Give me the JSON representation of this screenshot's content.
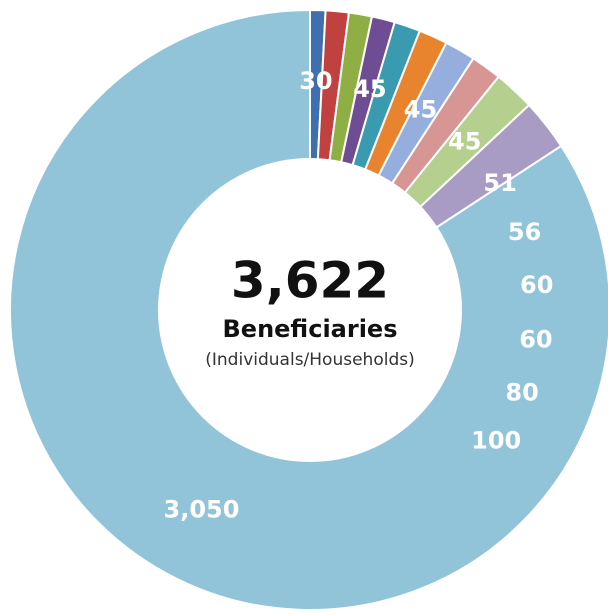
{
  "chart_data": {
    "type": "donut",
    "center_title": "3,622",
    "center_subtitle": "Beneficiaries",
    "center_note": "(Individuals/Households)",
    "values": [
      30,
      45,
      45,
      45,
      51,
      56,
      60,
      60,
      80,
      100,
      3050
    ],
    "value_labels": [
      "30",
      "45",
      "45",
      "45",
      "51",
      "56",
      "60",
      "60",
      "80",
      "100",
      "3,050"
    ],
    "colors": [
      "#3f6fae",
      "#c0413f",
      "#8faf45",
      "#6e4d94",
      "#3a9ab0",
      "#e8832e",
      "#96aede",
      "#d79694",
      "#b5cf8e",
      "#a89bc4",
      "#92c4d9"
    ]
  }
}
